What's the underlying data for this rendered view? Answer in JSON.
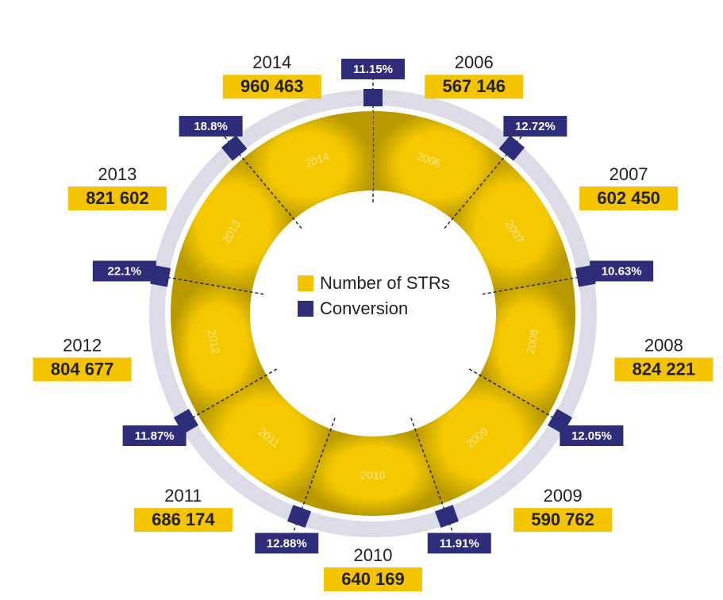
{
  "chart_data": {
    "type": "donut",
    "categories": [
      "2006",
      "2007",
      "2008",
      "2009",
      "2010",
      "2011",
      "2012",
      "2013",
      "2014"
    ],
    "series": [
      {
        "name": "Number of STRs",
        "color": "#f5c400",
        "values": [
          567146,
          602450,
          824221,
          590762,
          640169,
          686174,
          804677,
          821602,
          960463
        ],
        "value_labels": [
          "567 146",
          "602 450",
          "824 221",
          "590 762",
          "640 169",
          "686 174",
          "804 677",
          "821 602",
          "960 463"
        ]
      },
      {
        "name": "Conversion",
        "color": "#2e2d7a",
        "values": [
          11.15,
          12.72,
          10.63,
          12.05,
          11.91,
          12.88,
          11.87,
          22.1,
          18.8
        ],
        "value_labels": [
          "11.15%",
          "12.72%",
          "10.63%",
          "12.05%",
          "11.91%",
          "12.88%",
          "11.87%",
          "22.1%",
          "18.8%"
        ]
      }
    ]
  }
}
